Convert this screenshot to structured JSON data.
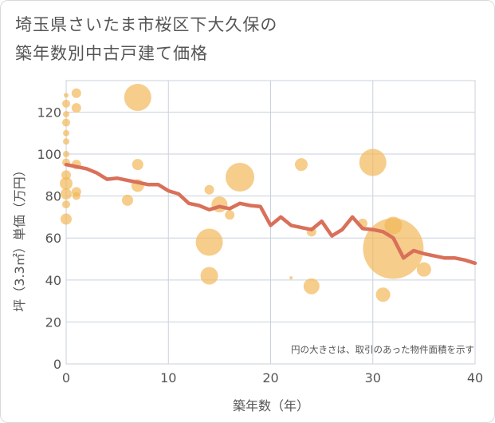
{
  "title_lines": [
    "埼玉県さいたま市桜区下大久保の",
    "築年数別中古戸建て価格"
  ],
  "chart_data": {
    "type": "scatter",
    "xlabel": "築年数（年）",
    "ylabel": "坪（3.3㎡）単価（万円）",
    "xlim": [
      0,
      40
    ],
    "ylim": [
      0,
      135
    ],
    "xticks": [
      0,
      10,
      20,
      30,
      40
    ],
    "yticks": [
      0,
      20,
      40,
      60,
      80,
      100,
      120
    ],
    "grid": true,
    "annotation": "円の大きさは、取引のあった物件面積を示す",
    "colors": {
      "bubble": "#f2b85a",
      "line": "#d9705a",
      "grid": "#c8d2dc",
      "axis_text": "#555555"
    },
    "bubbles": [
      {
        "x": 0,
        "y": 128,
        "size": 3
      },
      {
        "x": 0,
        "y": 124,
        "size": 5
      },
      {
        "x": 0,
        "y": 119,
        "size": 4
      },
      {
        "x": 0,
        "y": 115,
        "size": 5
      },
      {
        "x": 0,
        "y": 110,
        "size": 4
      },
      {
        "x": 0,
        "y": 106,
        "size": 4
      },
      {
        "x": 0,
        "y": 100,
        "size": 4
      },
      {
        "x": 0,
        "y": 96,
        "size": 5
      },
      {
        "x": 0,
        "y": 90,
        "size": 6
      },
      {
        "x": 0,
        "y": 86,
        "size": 8
      },
      {
        "x": 0,
        "y": 81,
        "size": 7
      },
      {
        "x": 0,
        "y": 76,
        "size": 5
      },
      {
        "x": 0,
        "y": 69,
        "size": 7
      },
      {
        "x": 1,
        "y": 129,
        "size": 6
      },
      {
        "x": 1,
        "y": 122,
        "size": 6
      },
      {
        "x": 1,
        "y": 95,
        "size": 6
      },
      {
        "x": 1,
        "y": 82,
        "size": 6
      },
      {
        "x": 1,
        "y": 80,
        "size": 5
      },
      {
        "x": 7,
        "y": 127,
        "size": 17
      },
      {
        "x": 7,
        "y": 95,
        "size": 7
      },
      {
        "x": 7,
        "y": 85,
        "size": 8
      },
      {
        "x": 6,
        "y": 78,
        "size": 7
      },
      {
        "x": 14,
        "y": 83,
        "size": 6
      },
      {
        "x": 14,
        "y": 58,
        "size": 17
      },
      {
        "x": 14,
        "y": 42,
        "size": 11
      },
      {
        "x": 15,
        "y": 76,
        "size": 10
      },
      {
        "x": 16,
        "y": 71,
        "size": 6
      },
      {
        "x": 17,
        "y": 89,
        "size": 18
      },
      {
        "x": 22,
        "y": 41,
        "size": 2
      },
      {
        "x": 23,
        "y": 95,
        "size": 8
      },
      {
        "x": 24,
        "y": 63,
        "size": 6
      },
      {
        "x": 24,
        "y": 37,
        "size": 10
      },
      {
        "x": 29,
        "y": 67,
        "size": 6
      },
      {
        "x": 30,
        "y": 96,
        "size": 17
      },
      {
        "x": 31,
        "y": 33,
        "size": 9
      },
      {
        "x": 32,
        "y": 66,
        "size": 11
      },
      {
        "x": 32,
        "y": 55,
        "size": 38
      },
      {
        "x": 35,
        "y": 45,
        "size": 9
      }
    ],
    "series": [
      {
        "x": [
          0,
          1,
          2,
          3,
          4,
          5,
          6,
          7,
          8,
          9,
          10,
          11,
          12,
          13,
          14,
          15,
          16,
          17,
          18,
          19,
          20,
          21,
          22,
          23,
          24,
          25,
          26,
          27,
          28,
          29,
          30,
          31,
          32,
          33,
          34,
          35,
          36,
          37,
          38,
          39,
          40
        ],
        "values": [
          95,
          94,
          93,
          91,
          88,
          88.5,
          87.5,
          86.5,
          85.5,
          85.5,
          82.5,
          81,
          76.5,
          75.5,
          73.5,
          75,
          74,
          76.5,
          75.5,
          75,
          66,
          70,
          66,
          65,
          64,
          68,
          61,
          64,
          70,
          64.5,
          64,
          63,
          60,
          50.5,
          54,
          52.5,
          51.5,
          50.5,
          50.5,
          49.5,
          48
        ]
      }
    ]
  }
}
